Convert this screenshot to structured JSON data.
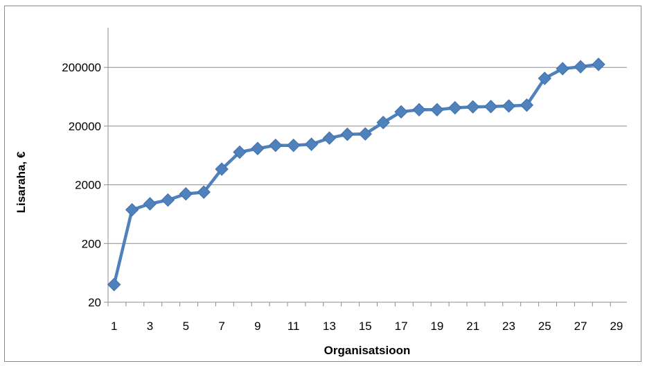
{
  "chart_data": {
    "type": "line",
    "title": "",
    "xlabel": "Organisatsioon",
    "ylabel": "Lisaraha, €",
    "y_scale": "log10",
    "ylim": [
      20,
      400000
    ],
    "xlim": [
      0.5,
      29.5
    ],
    "grid": true,
    "legend": "none",
    "x_tick_labels": [
      "1",
      "3",
      "5",
      "7",
      "9",
      "11",
      "13",
      "15",
      "17",
      "19",
      "21",
      "23",
      "25",
      "27",
      "29"
    ],
    "y_tick_labels": [
      "20",
      "200",
      "2000",
      "20000",
      "200000"
    ],
    "series": [
      {
        "color": "#4f81bd",
        "marker": "diamond",
        "x": [
          1,
          2,
          3,
          4,
          5,
          6,
          7,
          8,
          9,
          10,
          11,
          12,
          13,
          14,
          15,
          16,
          17,
          18,
          19,
          20,
          21,
          22,
          23,
          24,
          25,
          26,
          27,
          28
        ],
        "values": [
          40,
          750,
          950,
          1100,
          1400,
          1500,
          3700,
          7200,
          8300,
          9400,
          9400,
          9800,
          12500,
          14500,
          14700,
          23000,
          35000,
          38000,
          38000,
          41000,
          42500,
          43000,
          44000,
          45500,
          130000,
          190000,
          205000,
          225000
        ]
      }
    ]
  }
}
